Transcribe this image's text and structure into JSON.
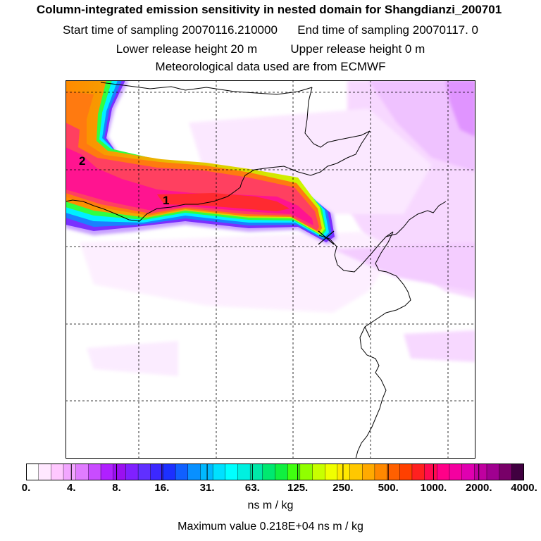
{
  "header": {
    "title": "Column-integrated emission sensitivity in nested domain for Shangdianzi_200701",
    "start_label": "Start time of sampling 20070116.210000",
    "end_label": "End time of sampling 20070117.     0",
    "lower_label": "Lower release height   20 m",
    "upper_label": "Upper release height    0 m",
    "met_label": "Meteorological data used are from ECMWF"
  },
  "map": {
    "markers": [
      {
        "label": "1"
      },
      {
        "label": "2"
      }
    ],
    "release_site": "Shangdianzi"
  },
  "colorbar": {
    "tick_labels": [
      "0.",
      "4.",
      "8.",
      "16.",
      "31.",
      "63.",
      "125.",
      "250.",
      "500.",
      "1000.",
      "2000.",
      "4000."
    ],
    "colors": [
      "#ffffff",
      "#ffe8ff",
      "#ffc8ff",
      "#f2a6ff",
      "#e07cff",
      "#c94cff",
      "#b020ff",
      "#9a10f0",
      "#8020ff",
      "#6030ff",
      "#3c28ff",
      "#1c30ff",
      "#1060ff",
      "#0890ff",
      "#00b8ff",
      "#00e0ff",
      "#00ffff",
      "#00f0e0",
      "#00e8a8",
      "#00e870",
      "#10f040",
      "#40ff10",
      "#90ff00",
      "#c8ff00",
      "#f0ff00",
      "#ffe800",
      "#ffc800",
      "#ffaa00",
      "#ff8800",
      "#ff6000",
      "#ff4000",
      "#ff2020",
      "#ff0a50",
      "#ff0088",
      "#f400a0",
      "#e000b0",
      "#c000a0",
      "#a00090",
      "#780068",
      "#400040"
    ],
    "units": "ns m / kg",
    "max_value_text": "Maximum value  0.218E+04 ns m / kg"
  }
}
